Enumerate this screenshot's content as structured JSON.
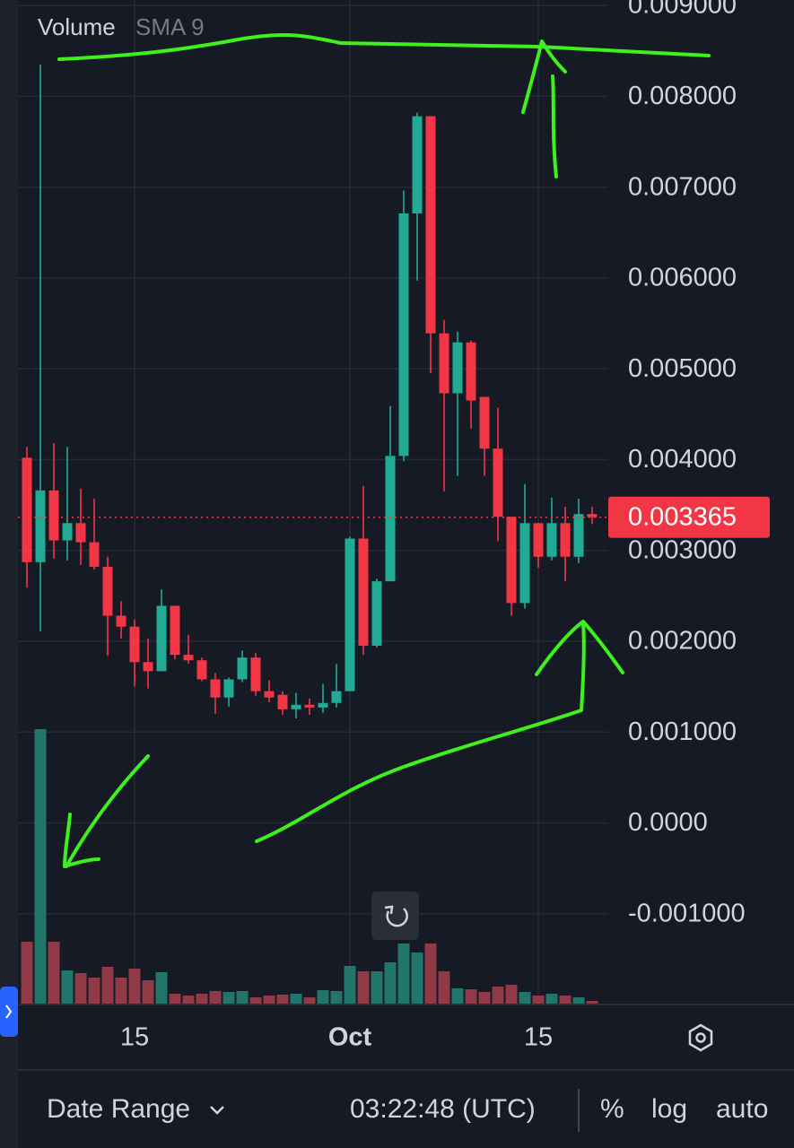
{
  "chart_data": {
    "type": "candlestick",
    "indicator": "Volume",
    "indicator_setting": "SMA 9",
    "categories": [
      null,
      null,
      null,
      null,
      null,
      null,
      null,
      null,
      "15",
      null,
      null,
      null,
      null,
      null,
      null,
      null,
      null,
      null,
      null,
      null,
      null,
      null,
      null,
      null,
      "Oct",
      null,
      null,
      null,
      null,
      null,
      null,
      null,
      null,
      null,
      null,
      null,
      null,
      null,
      "15",
      null,
      null,
      null,
      null
    ],
    "open": [
      0.00402,
      0.00287,
      0.00366,
      0.00311,
      0.0033,
      0.00309,
      0.00282,
      0.00228,
      0.00216,
      0.00177,
      0.00167,
      0.00239,
      0.00185,
      0.00179,
      0.00158,
      0.00138,
      0.00158,
      0.00182,
      0.00145,
      0.00141,
      0.00125,
      0.0013,
      0.00127,
      0.00132,
      0.00145,
      0.00313,
      0.00195,
      0.00266,
      0.00404,
      0.00671,
      0.00778,
      0.00539,
      0.00473,
      0.00529,
      0.00469,
      0.00412,
      0.00337,
      0.00242,
      0.0033,
      0.00293,
      0.0033,
      0.00293,
      0.0034
    ],
    "high": [
      0.00414,
      0.00835,
      0.00418,
      0.00414,
      0.00368,
      0.00357,
      0.00293,
      0.00244,
      0.00224,
      0.00203,
      0.00257,
      0.00239,
      0.00207,
      0.00182,
      0.00165,
      0.0016,
      0.0019,
      0.00187,
      0.00157,
      0.00145,
      0.00143,
      0.00137,
      0.00153,
      0.00175,
      0.00315,
      0.00371,
      0.00269,
      0.00459,
      0.00696,
      0.00782,
      0.00778,
      0.00554,
      0.00541,
      0.00531,
      0.00469,
      0.00457,
      0.00337,
      0.00373,
      0.0033,
      0.00358,
      0.00348,
      0.00357,
      0.00348
    ],
    "low": [
      0.00259,
      0.00211,
      0.00291,
      0.00289,
      0.00284,
      0.00279,
      0.00184,
      0.00203,
      0.0015,
      0.00148,
      0.00167,
      0.0018,
      0.00175,
      0.00156,
      0.0012,
      0.00128,
      0.00155,
      0.0014,
      0.00133,
      0.00119,
      0.00115,
      0.00119,
      0.00121,
      0.00127,
      0.00145,
      0.00185,
      0.00193,
      0.00266,
      0.00398,
      0.00597,
      0.00495,
      0.00365,
      0.00382,
      0.00434,
      0.00382,
      0.0031,
      0.00228,
      0.00236,
      0.00281,
      0.00289,
      0.00266,
      0.00286,
      0.00329
    ],
    "close": [
      0.00287,
      0.00366,
      0.00311,
      0.0033,
      0.00309,
      0.00282,
      0.00228,
      0.00216,
      0.00177,
      0.00167,
      0.00239,
      0.00185,
      0.00179,
      0.00158,
      0.00138,
      0.00158,
      0.00182,
      0.00145,
      0.00138,
      0.00125,
      0.0013,
      0.00127,
      0.00132,
      0.00145,
      0.00313,
      0.00195,
      0.00266,
      0.00404,
      0.00671,
      0.00778,
      0.00539,
      0.00473,
      0.00529,
      0.00465,
      0.00412,
      0.00337,
      0.00242,
      0.0033,
      0.00293,
      0.0033,
      0.00293,
      0.0034,
      0.003365
    ],
    "volume": [
      70,
      307,
      70,
      38,
      35,
      30,
      42,
      30,
      40,
      27,
      36,
      12,
      10,
      12,
      15,
      14,
      15,
      8,
      10,
      11,
      12,
      8,
      16,
      15,
      43,
      37,
      37,
      47,
      68,
      58,
      68,
      37,
      18,
      17,
      14,
      20,
      22,
      14,
      10,
      12,
      10,
      8,
      4
    ],
    "up_color": "#22ab94",
    "down_color": "#f23645",
    "volume_up_color": "#22756a",
    "volume_down_color": "#8f3a46",
    "current_price": 0.003365,
    "ylim": [
      -0.002,
      0.00906
    ],
    "yticks": [
      {
        "value": 0.009,
        "label": "0.009000"
      },
      {
        "value": 0.008,
        "label": "0.008000"
      },
      {
        "value": 0.007,
        "label": "0.007000"
      },
      {
        "value": 0.006,
        "label": "0.006000"
      },
      {
        "value": 0.005,
        "label": "0.005000"
      },
      {
        "value": 0.004,
        "label": "0.004000"
      },
      {
        "value": 0.003,
        "label": "0.003000"
      },
      {
        "value": 0.002,
        "label": "0.002000"
      },
      {
        "value": 0.001,
        "label": "0.001000"
      },
      {
        "value": 0,
        "label": "0.0000"
      },
      {
        "value": -0.001,
        "label": "-0.001000"
      }
    ],
    "grid": true
  },
  "toolbar": {
    "date_range": "Date Range",
    "time": "03:22:48 (UTC)",
    "percent": "%",
    "log": "log",
    "auto": "auto"
  }
}
